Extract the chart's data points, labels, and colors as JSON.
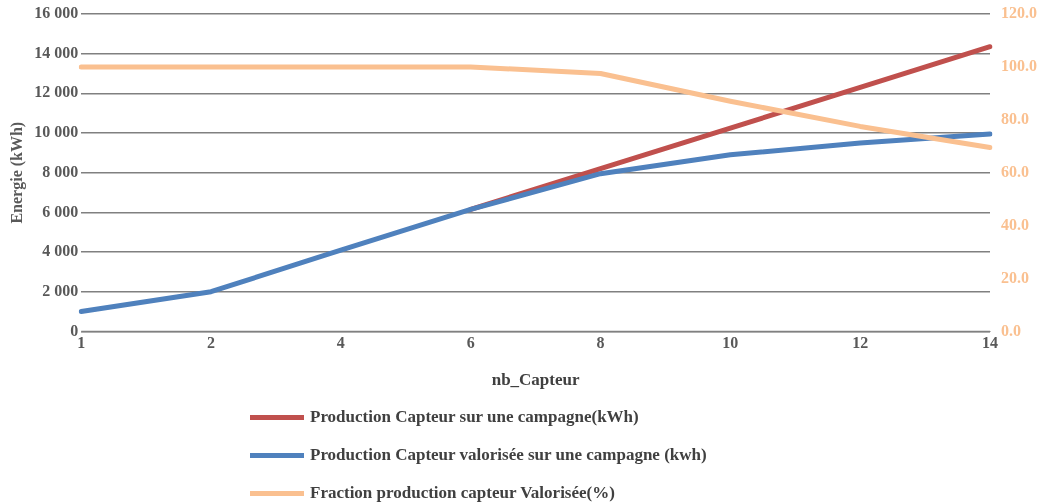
{
  "chart_data": {
    "type": "line",
    "xlabel": "nb_Capteur",
    "ylabel": "Energie (kWh)",
    "categories": [
      "1",
      "2",
      "4",
      "6",
      "8",
      "10",
      "12",
      "14"
    ],
    "series": [
      {
        "name": "Production Capteur sur une campagne(kWh)",
        "color": "#c0504d",
        "values": [
          null,
          null,
          null,
          6150,
          8200,
          10250,
          12300,
          14350
        ]
      },
      {
        "name": "Production Capteur valorisée sur une campagne (kwh)",
        "color": "#4f81bd",
        "values": [
          1000,
          2000,
          4100,
          6150,
          7950,
          8900,
          9500,
          9950
        ]
      },
      {
        "name": "Fraction production capteur Valorisée(%)",
        "color": "#fac090",
        "axis": "y2",
        "values": [
          100,
          100,
          100,
          100,
          97.5,
          87,
          77.5,
          69.5
        ]
      }
    ],
    "ylim": [
      0,
      16000
    ],
    "yticks": [
      0,
      {
        "value": 2000,
        "label": "2 000"
      },
      {
        "value": 4000,
        "label": "4 000"
      },
      {
        "value": 6000,
        "label": "6 000"
      },
      {
        "value": 8000,
        "label": "8 000"
      },
      {
        "value": 10000,
        "label": "10 000"
      },
      {
        "value": 12000,
        "label": "12 000"
      },
      {
        "value": 14000,
        "label": "14 000"
      },
      {
        "value": 16000,
        "label": "16 000"
      }
    ],
    "y2lim": [
      0,
      120
    ],
    "y2ticks": [
      {
        "value": 0,
        "label": "0.0"
      },
      {
        "value": 20,
        "label": "20.0"
      },
      {
        "value": 40,
        "label": "40.0"
      },
      {
        "value": 60,
        "label": "60.0"
      },
      {
        "value": 80,
        "label": "80.0"
      },
      {
        "value": 100,
        "label": "100.0"
      },
      {
        "value": 120,
        "label": "120.0"
      }
    ],
    "grid": "y",
    "legend": "bottom",
    "marker": "none",
    "line_style": "solid"
  }
}
